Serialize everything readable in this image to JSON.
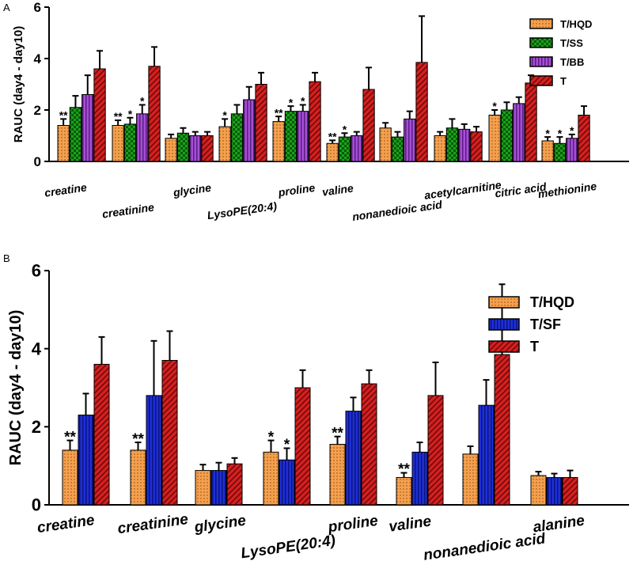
{
  "colors": {
    "T/HQD": "#f6a04e",
    "T/SS": "#1aa21a",
    "T/BB": "#a64ed6",
    "T/SF": "#1f2fd6",
    "T": "#d62020"
  },
  "chart_data": [
    {
      "type": "bar",
      "panel": "A",
      "ylabel": "RAUC (day4 - day10)",
      "ylim": [
        0,
        6
      ],
      "yticks": [
        "0",
        "2",
        "4",
        "6"
      ],
      "categories": [
        "creatine",
        "creatinine",
        "glycine",
        "LysoPE(20:4)",
        "proline",
        "valine",
        "nonanedioic acid",
        "acetylcarnitine",
        "citric acid",
        "methionine"
      ],
      "legend": [
        "T/HQD",
        "T/SS",
        "T/BB",
        "T"
      ],
      "series": [
        {
          "name": "T/HQD",
          "values": [
            1.4,
            1.4,
            0.9,
            1.35,
            1.55,
            0.7,
            1.3,
            1.0,
            1.8,
            0.8
          ],
          "errors": [
            0.25,
            0.2,
            0.15,
            0.3,
            0.2,
            0.12,
            0.2,
            0.15,
            0.2,
            0.15
          ],
          "sig": [
            "**",
            "**",
            "",
            "*",
            "**",
            "**",
            "",
            "",
            "*",
            "*"
          ]
        },
        {
          "name": "T/SS",
          "values": [
            2.1,
            1.45,
            1.1,
            1.85,
            1.95,
            0.95,
            0.95,
            1.3,
            2.0,
            0.7
          ],
          "errors": [
            0.45,
            0.25,
            0.2,
            0.35,
            0.2,
            0.15,
            0.2,
            0.35,
            0.3,
            0.25
          ],
          "sig": [
            "",
            "*",
            "",
            "",
            "*",
            "*",
            "",
            "",
            "",
            "*"
          ]
        },
        {
          "name": "T/BB",
          "values": [
            2.6,
            1.85,
            1.0,
            2.4,
            1.95,
            1.0,
            1.65,
            1.25,
            2.25,
            0.9
          ],
          "errors": [
            0.75,
            0.35,
            0.15,
            0.5,
            0.25,
            0.15,
            0.3,
            0.2,
            0.25,
            0.15
          ],
          "sig": [
            "",
            "*",
            "",
            "",
            "*",
            "",
            "",
            "",
            "",
            "*"
          ]
        },
        {
          "name": "T",
          "values": [
            3.6,
            3.7,
            1.0,
            3.0,
            3.1,
            2.8,
            3.85,
            1.15,
            3.05,
            1.8
          ],
          "errors": [
            0.7,
            0.75,
            0.15,
            0.45,
            0.35,
            0.85,
            1.8,
            0.2,
            0.3,
            0.35
          ],
          "sig": [
            "",
            "",
            "",
            "",
            "",
            "",
            "",
            "",
            "",
            ""
          ]
        }
      ]
    },
    {
      "type": "bar",
      "panel": "B",
      "ylabel": "RAUC (day4 - day10)",
      "ylim": [
        0,
        6
      ],
      "yticks": [
        "0",
        "2",
        "4",
        "6"
      ],
      "categories": [
        "creatine",
        "creatinine",
        "glycine",
        "LysoPE(20:4)",
        "proline",
        "valine",
        "nonanedioic acid",
        "alanine"
      ],
      "legend": [
        "T/HQD",
        "T/SF",
        "T"
      ],
      "series": [
        {
          "name": "T/HQD",
          "values": [
            1.4,
            1.4,
            0.88,
            1.35,
            1.55,
            0.7,
            1.3,
            0.75
          ],
          "errors": [
            0.25,
            0.2,
            0.15,
            0.3,
            0.2,
            0.12,
            0.2,
            0.1
          ],
          "sig": [
            "**",
            "**",
            "",
            "*",
            "**",
            "**",
            "",
            ""
          ]
        },
        {
          "name": "T/SF",
          "values": [
            2.3,
            2.8,
            0.88,
            1.15,
            2.4,
            1.35,
            2.55,
            0.7
          ],
          "errors": [
            0.55,
            1.4,
            0.2,
            0.3,
            0.35,
            0.25,
            0.65,
            0.1
          ],
          "sig": [
            "",
            "",
            "",
            "*",
            "",
            "",
            "",
            ""
          ]
        },
        {
          "name": "T",
          "values": [
            3.6,
            3.7,
            1.05,
            3.0,
            3.1,
            2.8,
            3.85,
            0.7
          ],
          "errors": [
            0.7,
            0.75,
            0.15,
            0.45,
            0.35,
            0.85,
            1.8,
            0.18
          ],
          "sig": [
            "",
            "",
            "",
            "",
            "",
            "",
            "",
            ""
          ]
        }
      ]
    }
  ],
  "panel_labels": [
    "A",
    "B"
  ]
}
